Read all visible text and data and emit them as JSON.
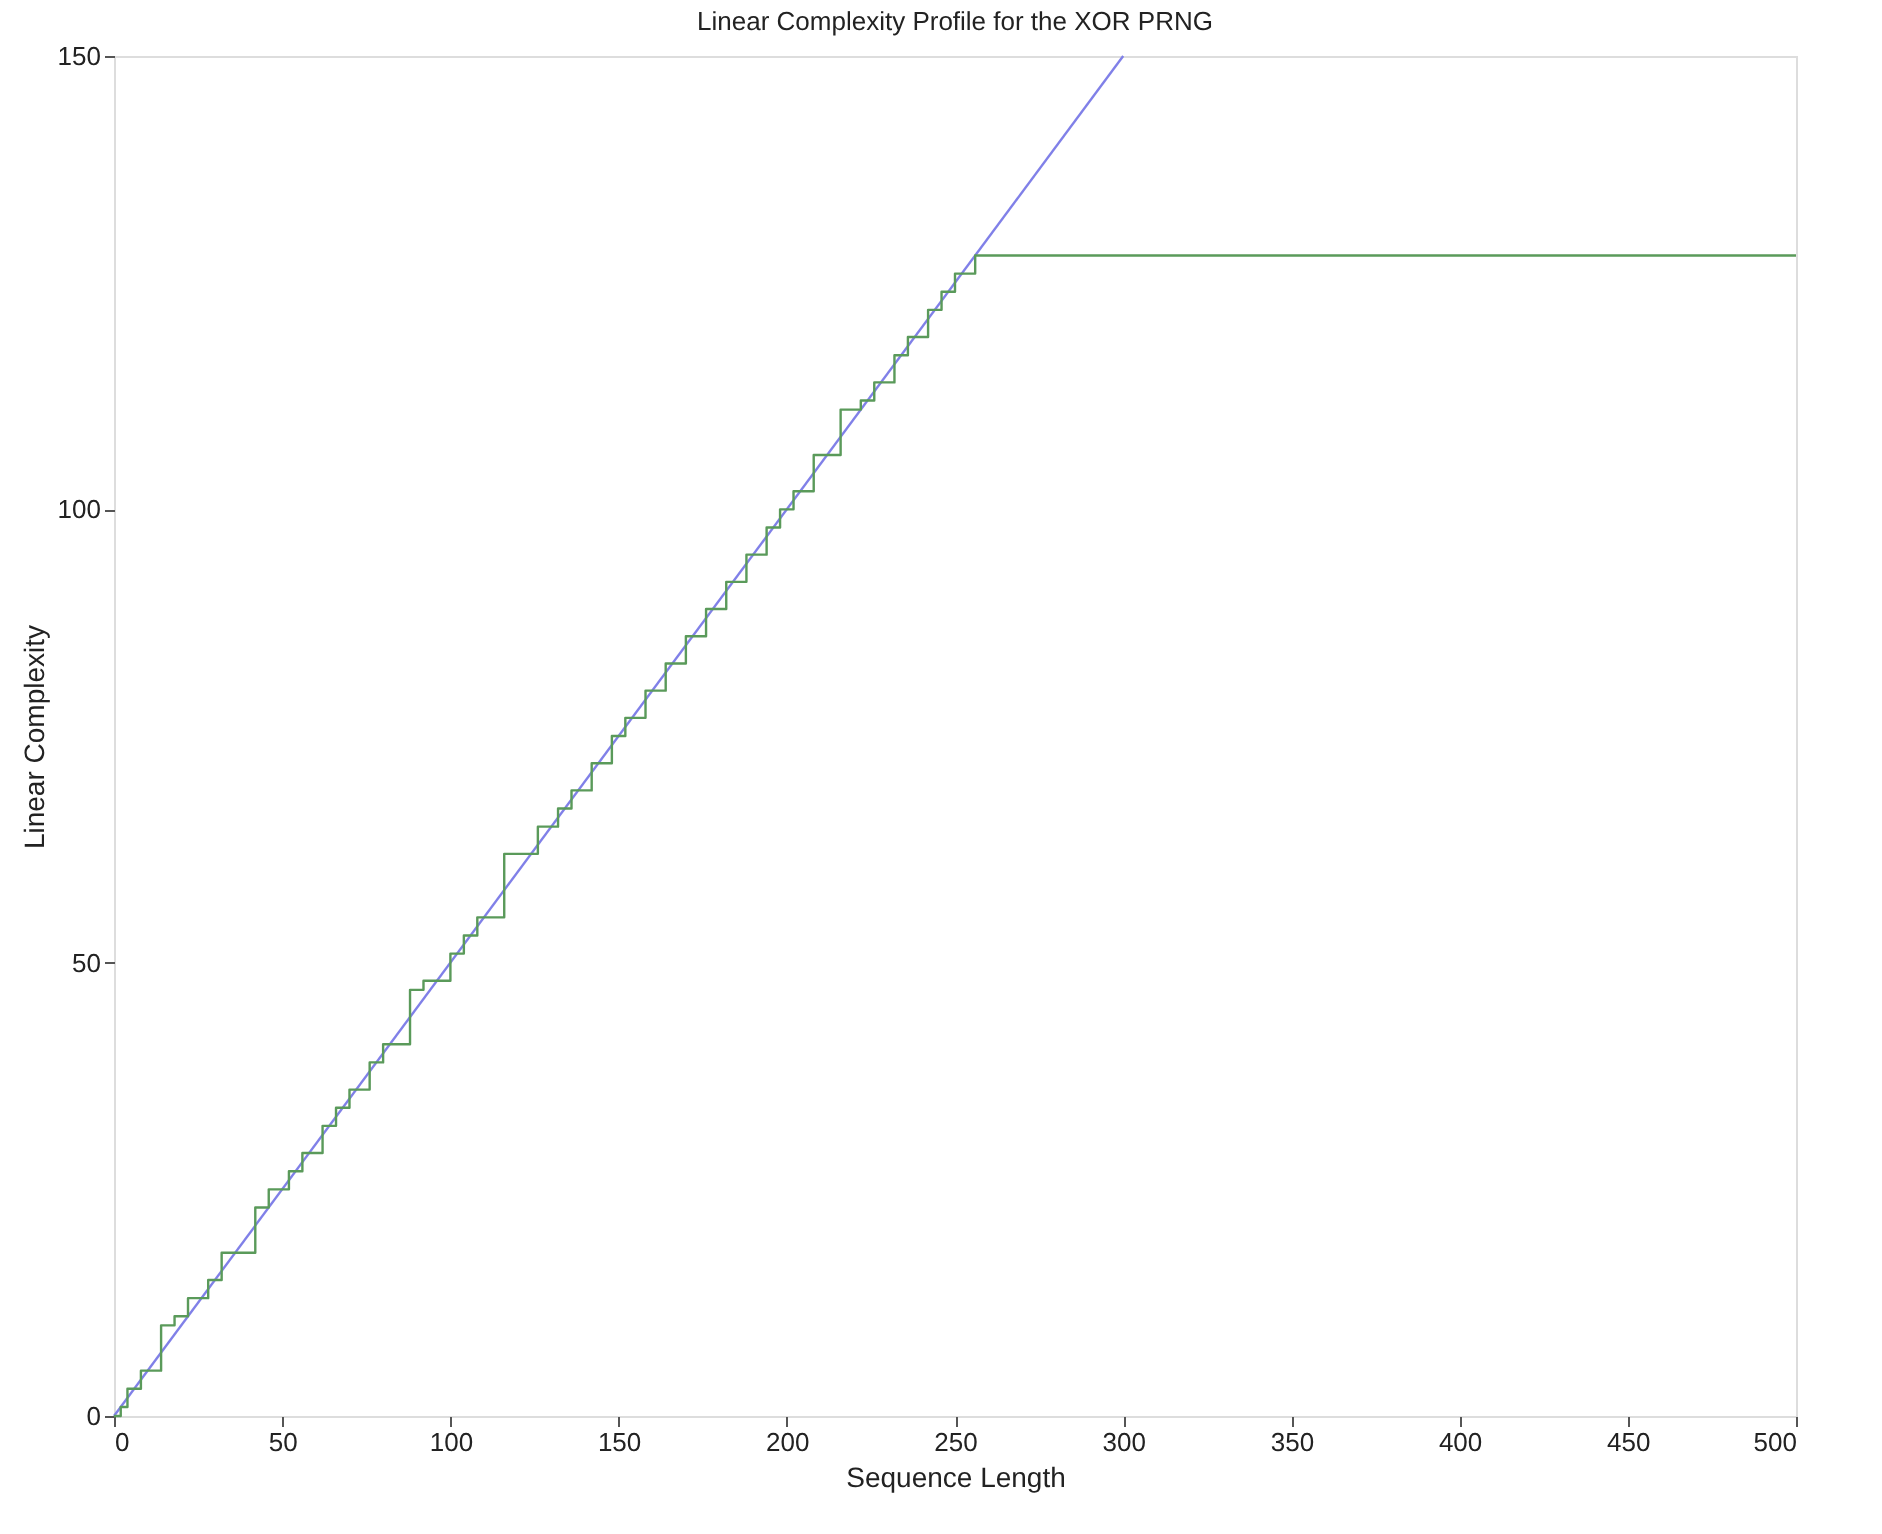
{
  "chart_data": {
    "type": "line",
    "title": "Linear Complexity Profile for the XOR PRNG",
    "xlabel": "Sequence Length",
    "ylabel": "Linear Complexity",
    "xlim": [
      0,
      500
    ],
    "ylim": [
      0,
      150
    ],
    "xticks": [
      0,
      50,
      100,
      150,
      200,
      250,
      300,
      350,
      400,
      450,
      500
    ],
    "yticks": [
      0,
      50,
      100,
      150
    ],
    "grid": false,
    "series": [
      {
        "color": "#8080e8",
        "x": [
          0,
          300
        ],
        "values": [
          0,
          150
        ]
      },
      {
        "type": "step",
        "color": "#5a9a5a",
        "x": [
          0,
          2,
          4,
          8,
          14,
          18,
          22,
          28,
          32,
          42,
          46,
          52,
          56,
          62,
          66,
          70,
          76,
          80,
          88,
          92,
          100,
          104,
          108,
          116,
          126,
          132,
          136,
          142,
          148,
          152,
          158,
          164,
          170,
          176,
          182,
          188,
          194,
          198,
          202,
          208,
          216,
          222,
          226,
          232,
          236,
          242,
          246,
          250,
          256,
          500
        ],
        "values": [
          0,
          1,
          3,
          5,
          10,
          11,
          13,
          15,
          18,
          23,
          25,
          27,
          29,
          32,
          34,
          36,
          39,
          41,
          47,
          48,
          51,
          53,
          55,
          62,
          65,
          67,
          69,
          72,
          75,
          77,
          80,
          83,
          86,
          89,
          92,
          95,
          98,
          100,
          102,
          106,
          111,
          112,
          114,
          117,
          119,
          122,
          124,
          126,
          128,
          128
        ]
      }
    ]
  }
}
